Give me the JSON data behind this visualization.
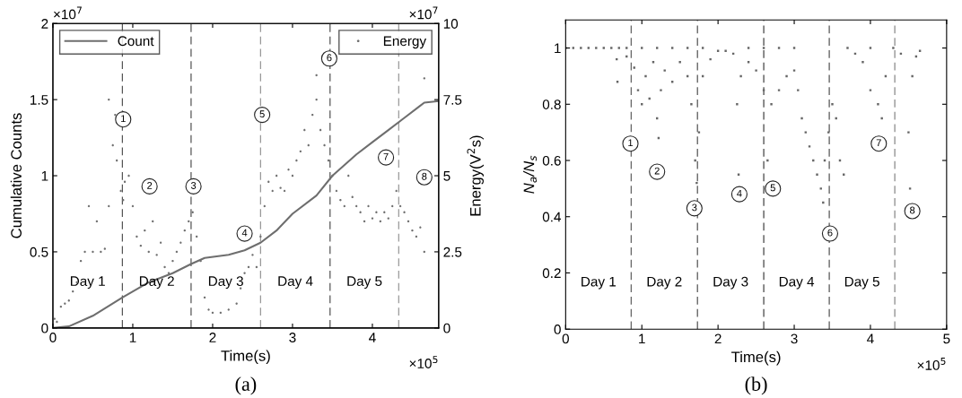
{
  "chart_data": [
    {
      "type": "scatter",
      "xlabel": "Time(s)",
      "ylabel": "Cumulative Counts",
      "y2label": "Energy(V$^{2}$s)",
      "xlim": [
        0,
        4.83
      ],
      "xticks": [
        0,
        1,
        2,
        3,
        4
      ],
      "ylim": [
        0,
        2
      ],
      "yticks": [
        0,
        0.5,
        1,
        1.5,
        2
      ],
      "y2lim": [
        0,
        10
      ],
      "y2ticks": [
        0,
        2.5,
        5,
        7.5,
        10
      ],
      "legend": "top",
      "grid": false,
      "series": [
        {
          "name": "Count",
          "type": "line",
          "axis": "y",
          "color": "#6e6e6e",
          "line_style": "solid",
          "marker": "none",
          "x": [
            0,
            0.2,
            0.5,
            0.87,
            1.2,
            1.5,
            1.73,
            1.9,
            2.2,
            2.4,
            2.6,
            2.8,
            3.0,
            3.3,
            3.5,
            3.8,
            4.0,
            4.2,
            4.4,
            4.6,
            4.65,
            4.83
          ],
          "values": [
            0,
            0.01,
            0.08,
            0.2,
            0.3,
            0.36,
            0.42,
            0.46,
            0.48,
            0.51,
            0.56,
            0.64,
            0.75,
            0.87,
            1.0,
            1.14,
            1.22,
            1.3,
            1.38,
            1.46,
            1.48,
            1.49
          ]
        },
        {
          "name": "Energy",
          "axis": "y2",
          "color": "#707070",
          "marker": "circle",
          "x": [
            0.02,
            0.05,
            0.1,
            0.15,
            0.2,
            0.25,
            0.3,
            0.35,
            0.4,
            0.45,
            0.5,
            0.55,
            0.6,
            0.65,
            0.7,
            0.7,
            0.75,
            0.78,
            0.8,
            0.85,
            0.88,
            0.9,
            0.95,
            1.0,
            1.05,
            1.1,
            1.15,
            1.2,
            1.25,
            1.3,
            1.35,
            1.4,
            1.45,
            1.5,
            1.55,
            1.6,
            1.65,
            1.7,
            1.75,
            1.8,
            1.85,
            1.9,
            1.95,
            2.0,
            2.1,
            2.2,
            2.3,
            2.35,
            2.4,
            2.45,
            2.5,
            2.55,
            2.6,
            2.65,
            2.7,
            2.75,
            2.8,
            2.85,
            2.9,
            2.95,
            3.0,
            3.05,
            3.1,
            3.15,
            3.2,
            3.25,
            3.3,
            3.3,
            3.35,
            3.4,
            3.45,
            3.5,
            3.55,
            3.6,
            3.65,
            3.7,
            3.75,
            3.8,
            3.85,
            3.9,
            3.95,
            4.0,
            4.05,
            4.1,
            4.15,
            4.2,
            4.25,
            4.3,
            4.35,
            4.4,
            4.45,
            4.5,
            4.55,
            4.6,
            4.65,
            4.65
          ],
          "values": [
            0.3,
            0.2,
            0.7,
            0.8,
            0.9,
            1.2,
            1.5,
            2.2,
            2.5,
            4.0,
            2.5,
            3.5,
            2.5,
            2.6,
            4.0,
            7.5,
            6.0,
            7.0,
            5.5,
            4.5,
            4.2,
            4.8,
            5.0,
            4.0,
            3.0,
            2.7,
            3.2,
            2.5,
            3.5,
            2.4,
            2.8,
            2.0,
            1.8,
            2.2,
            2.5,
            2.8,
            3.2,
            3.5,
            3.8,
            3.0,
            2.2,
            1.0,
            0.6,
            0.5,
            0.5,
            0.6,
            0.8,
            1.3,
            1.8,
            2.0,
            2.4,
            2.0,
            3.0,
            4.0,
            4.8,
            4.5,
            5.0,
            4.6,
            4.5,
            5.2,
            5.0,
            5.5,
            5.8,
            6.5,
            6.0,
            7.0,
            7.5,
            8.3,
            6.5,
            6.0,
            5.5,
            5.0,
            4.5,
            4.2,
            4.0,
            5.0,
            4.3,
            4.0,
            3.8,
            3.5,
            4.0,
            3.6,
            3.8,
            3.5,
            3.8,
            3.6,
            4.0,
            4.5,
            4.0,
            3.8,
            3.5,
            3.2,
            3.0,
            3.3,
            2.5,
            8.2
          ]
        }
      ],
      "ref_lines": [
        {
          "axis": "x",
          "value": 0.87,
          "color": "#555555",
          "line_style": "dashed"
        },
        {
          "axis": "x",
          "value": 1.73,
          "color": "#555555",
          "line_style": "dashed"
        },
        {
          "axis": "x",
          "value": 2.6,
          "color": "#999999",
          "line_style": "dashed"
        },
        {
          "axis": "x",
          "value": 3.47,
          "color": "#555555",
          "line_style": "dashed"
        },
        {
          "axis": "x",
          "value": 4.33,
          "color": "#999999",
          "line_style": "dashed"
        }
      ],
      "annotations": [
        "(a)",
        "×10$^{5}$",
        "×10$^{7}$",
        "×10$^{7}$",
        "Day 1",
        "Day 2",
        "Day 3",
        "Day 4",
        "Day 5",
        {
          "text": "1",
          "x": 0.88,
          "y": 1.37
        },
        {
          "text": "2",
          "x": 1.21,
          "y": 0.93
        },
        {
          "text": "3",
          "x": 1.76,
          "y": 0.93
        },
        {
          "text": "4",
          "x": 2.4,
          "y": 0.62
        },
        {
          "text": "5",
          "x": 2.62,
          "y": 1.4
        },
        {
          "text": "6",
          "x": 3.46,
          "y": 1.77
        },
        {
          "text": "7",
          "x": 4.17,
          "y": 1.12
        },
        {
          "text": "8",
          "x": 4.65,
          "y": 0.99
        }
      ]
    },
    {
      "type": "scatter",
      "xlabel": "Time(s)",
      "ylabel": "N$_{a}$/N$_{s}$",
      "xlim": [
        0,
        5
      ],
      "xticks": [
        0,
        1,
        2,
        3,
        4,
        5
      ],
      "ylim": [
        0,
        1.1
      ],
      "yticks": [
        0,
        0.2,
        0.4,
        0.6,
        0.8,
        1
      ],
      "grid": false,
      "series": [
        {
          "color": "#666666",
          "marker": "square",
          "x": [
            0,
            0.1,
            0.2,
            0.3,
            0.4,
            0.5,
            0.6,
            0.67,
            0.68,
            0.7,
            0.8,
            0.8,
            0.9,
            0.95,
            1.0,
            1.0,
            1.05,
            1.1,
            1.15,
            1.2,
            1.2,
            1.22,
            1.25,
            1.3,
            1.4,
            1.4,
            1.5,
            1.6,
            1.6,
            1.65,
            1.7,
            1.72,
            1.75,
            1.8,
            1.8,
            1.9,
            2.0,
            2.1,
            2.2,
            2.25,
            2.27,
            2.3,
            2.4,
            2.4,
            2.5,
            2.6,
            2.6,
            2.65,
            2.7,
            2.8,
            2.8,
            2.9,
            3.0,
            3.0,
            3.05,
            3.1,
            3.15,
            3.2,
            3.25,
            3.3,
            3.35,
            3.38,
            3.4,
            3.45,
            3.5,
            3.55,
            3.6,
            3.65,
            3.7,
            3.8,
            3.9,
            4.0,
            4.0,
            4.1,
            4.15,
            4.2,
            4.3,
            4.4,
            4.5,
            4.52,
            4.55,
            4.6,
            4.65
          ],
          "values": [
            1.0,
            1.0,
            1.0,
            1.0,
            1.0,
            1.0,
            1.0,
            0.96,
            0.88,
            1.0,
            1.0,
            0.97,
            0.93,
            0.85,
            1.0,
            0.8,
            0.9,
            0.82,
            0.95,
            1.0,
            0.75,
            0.68,
            0.85,
            0.92,
            1.0,
            0.88,
            0.95,
            1.0,
            0.9,
            0.8,
            0.6,
            0.52,
            0.7,
            1.0,
            0.9,
            0.96,
            0.99,
            0.99,
            0.98,
            0.8,
            0.55,
            0.9,
            1.0,
            0.95,
            0.92,
            1.0,
            0.85,
            0.6,
            0.8,
            1.0,
            0.85,
            0.9,
            1.0,
            0.92,
            0.85,
            0.75,
            0.7,
            0.65,
            0.6,
            0.55,
            0.5,
            0.45,
            0.6,
            0.7,
            0.8,
            0.75,
            0.6,
            0.55,
            1.0,
            0.98,
            0.95,
            1.0,
            0.85,
            0.8,
            0.75,
            0.9,
            1.0,
            0.98,
            0.7,
            0.5,
            0.9,
            0.97,
            0.99
          ]
        }
      ],
      "ref_lines": [
        {
          "axis": "x",
          "value": 0.86,
          "color": "#666666",
          "line_style": "dashed"
        },
        {
          "axis": "x",
          "value": 1.73,
          "color": "#555555",
          "line_style": "dashed"
        },
        {
          "axis": "x",
          "value": 2.6,
          "color": "#444444",
          "line_style": "dashed"
        },
        {
          "axis": "x",
          "value": 3.46,
          "color": "#555555",
          "line_style": "dashed"
        },
        {
          "axis": "x",
          "value": 4.32,
          "color": "#888888",
          "line_style": "dashed"
        }
      ],
      "annotations": [
        "(b)",
        "×10$^{5}$",
        "Day 1",
        "Day 2",
        "Day 3",
        "Day 4",
        "Day 5",
        {
          "text": "1",
          "x": 0.85,
          "y": 0.66
        },
        {
          "text": "2",
          "x": 1.2,
          "y": 0.56
        },
        {
          "text": "3",
          "x": 1.69,
          "y": 0.43
        },
        {
          "text": "4",
          "x": 2.28,
          "y": 0.48
        },
        {
          "text": "5",
          "x": 2.72,
          "y": 0.5
        },
        {
          "text": "6",
          "x": 3.47,
          "y": 0.34
        },
        {
          "text": "7",
          "x": 4.11,
          "y": 0.66
        },
        {
          "text": "8",
          "x": 4.55,
          "y": 0.42
        }
      ]
    }
  ]
}
